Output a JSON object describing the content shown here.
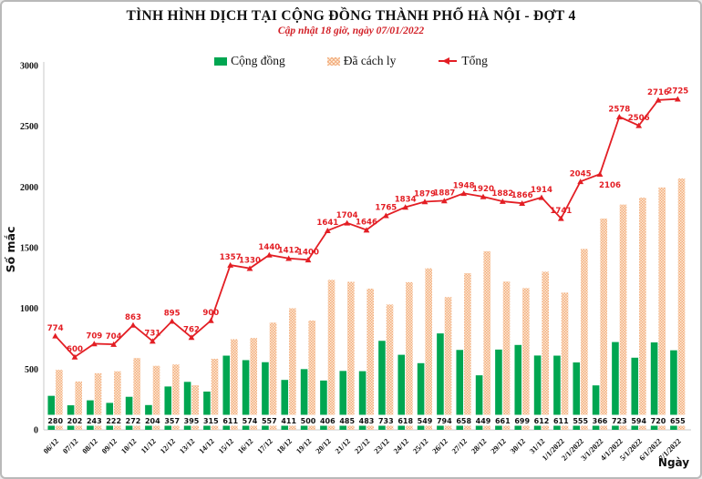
{
  "header": {
    "title": "TÌNH HÌNH DỊCH TẠI CỘNG ĐỒNG THÀNH PHỐ HÀ NỘI - ĐỢT 4",
    "subtitle": "Cập nhật 18 giờ, ngày 07/01/2022"
  },
  "legend": {
    "community": "Cộng đồng",
    "quarantine": "Đã cách ly",
    "total": "Tổng"
  },
  "colors": {
    "community": "#00a651",
    "quarantine_hatch": "#f2ab7c",
    "quarantine_bg": "#fdecd9",
    "total": "#e31e24",
    "axis": "#c8c8c8",
    "text": "#111111"
  },
  "chart_data": {
    "type": "bar",
    "subtype": "grouped bars with overlaid line",
    "title": "TÌNH HÌNH DỊCH TẠI CỘNG ĐỒNG THÀNH PHỐ HÀ NỘI - ĐỢT 4",
    "subtitle": "Cập nhật 18 giờ, ngày 07/01/2022",
    "xlabel": "Ngày",
    "ylabel": "Số mắc",
    "ylim": [
      0,
      3000
    ],
    "yticks": [
      0,
      500,
      1000,
      1500,
      2000,
      2500,
      3000
    ],
    "grid": false,
    "legend_position": "top",
    "categories": [
      "06/12",
      "07/12",
      "08/12",
      "09/12",
      "10/12",
      "11/12",
      "12/12",
      "13/12",
      "14/12",
      "15/12",
      "16/12",
      "17/12",
      "18/12",
      "19/12",
      "20/12",
      "21/12",
      "22/12",
      "23/12",
      "24/12",
      "25/12",
      "26/12",
      "27/12",
      "28/12",
      "29/12",
      "30/12",
      "31/12",
      "1/1/2022",
      "2/1/2022",
      "3/1/2022",
      "4/1/2022",
      "5/1/2022",
      "6/1/2022",
      "7/1/2022"
    ],
    "series": [
      {
        "name": "Cộng đồng",
        "type": "bar",
        "color": "#00a651",
        "labels_shown": true,
        "values": [
          280,
          202,
          243,
          222,
          272,
          204,
          357,
          395,
          315,
          611,
          574,
          557,
          411,
          500,
          406,
          485,
          483,
          733,
          618,
          549,
          794,
          658,
          449,
          661,
          699,
          612,
          611,
          555,
          366,
          723,
          594,
          720,
          655
        ]
      },
      {
        "name": "Đã cách ly",
        "type": "bar",
        "pattern": "hatch",
        "labels_shown": false,
        "values": [
          494,
          398,
          466,
          482,
          591,
          527,
          538,
          367,
          585,
          746,
          756,
          883,
          1001,
          900,
          1235,
          1219,
          1163,
          1032,
          1216,
          1330,
          1093,
          1290,
          1471,
          1221,
          1167,
          1302,
          1130,
          1490,
          1740,
          1855,
          1912,
          1996,
          2070
        ]
      },
      {
        "name": "Tổng",
        "type": "line",
        "color": "#e31e24",
        "marker": "triangle",
        "labels_shown": true,
        "values": [
          774,
          600,
          709,
          704,
          863,
          731,
          895,
          762,
          900,
          1357,
          1330,
          1440,
          1412,
          1400,
          1641,
          1704,
          1646,
          1765,
          1834,
          1879,
          1887,
          1948,
          1920,
          1882,
          1866,
          1914,
          1741,
          2045,
          2106,
          2578,
          2506,
          2716,
          2725
        ]
      }
    ]
  }
}
